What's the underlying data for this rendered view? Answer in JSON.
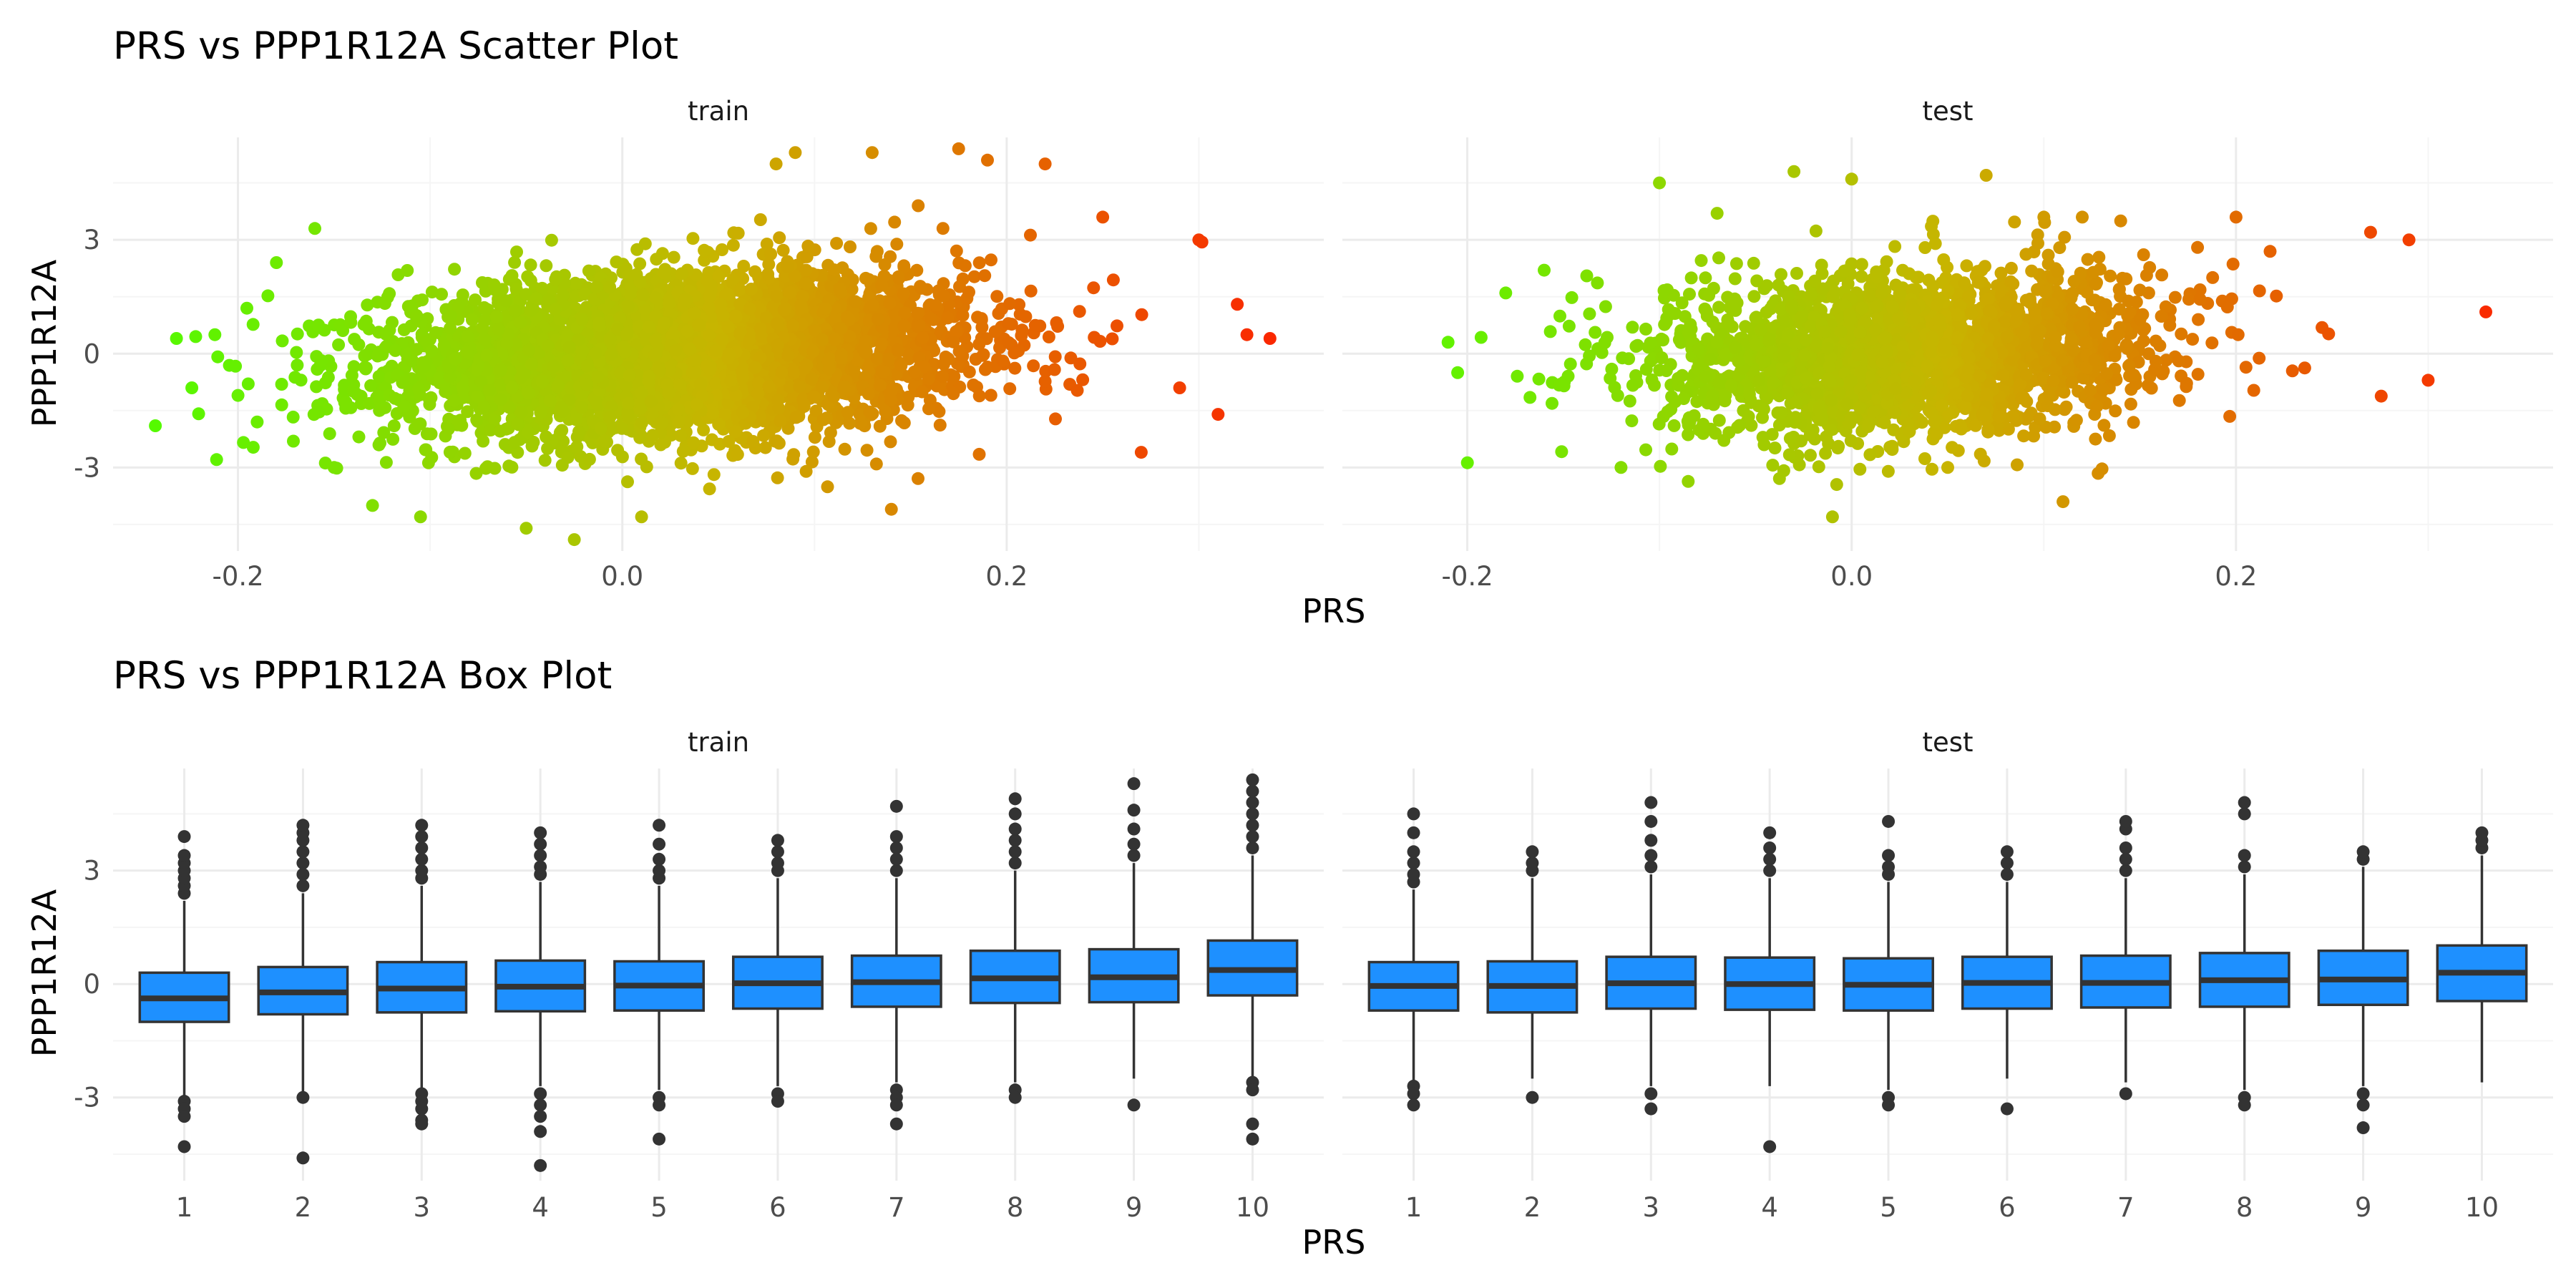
{
  "colors": {
    "background": "#ffffff",
    "grid_major": "#ebebeb",
    "grid_minor": "#f5f5f5",
    "box_fill": "#1e90ff",
    "box_stroke": "#333333",
    "outlier": "#333333",
    "gradient_low": "#4cff00",
    "gradient_mid": "#c8b400",
    "gradient_high": "#ff1a00"
  },
  "chart_data": [
    {
      "type": "scatter",
      "title": "PRS vs PPP1R12A Scatter Plot",
      "xlabel": "PRS",
      "ylabel": "PPP1R12A",
      "facets": [
        "train",
        "test"
      ],
      "x_ticks": [
        "-0.2",
        "0.0",
        "0.2"
      ],
      "x_tick_values": [
        -0.2,
        0.0,
        0.2
      ],
      "y_ticks": [
        "3",
        "0",
        "-3"
      ],
      "y_tick_values": [
        3,
        0,
        -3
      ],
      "xlim": [
        -0.265,
        0.365
      ],
      "ylim": [
        -5.2,
        5.7
      ],
      "grid": true,
      "color_encoding": "gradient by PRS, green (low) to red (high)",
      "panels": [
        {
          "facet": "train",
          "cloud": {
            "x_center": 0.03,
            "x_sd": 0.075,
            "y_center": 0.0,
            "y_sd": 1.05,
            "x_min": -0.24,
            "x_max": 0.34,
            "n_points": 4200,
            "slope": 2.4
          },
          "outliers": [
            [
              -0.243,
              -1.9
            ],
            [
              -0.232,
              0.4
            ],
            [
              -0.224,
              -0.9
            ],
            [
              -0.222,
              0.45
            ],
            [
              -0.212,
              0.5
            ],
            [
              -0.2,
              -1.1
            ],
            [
              -0.19,
              -1.8
            ],
            [
              -0.18,
              2.4
            ],
            [
              -0.16,
              3.3
            ],
            [
              -0.15,
              -3.0
            ],
            [
              -0.105,
              -4.3
            ],
            [
              -0.05,
              -4.6
            ],
            [
              -0.025,
              -4.9
            ],
            [
              0.01,
              -4.3
            ],
            [
              0.09,
              5.3
            ],
            [
              0.08,
              5.0
            ],
            [
              0.13,
              5.3
            ],
            [
              0.175,
              5.4
            ],
            [
              0.19,
              5.1
            ],
            [
              0.22,
              5.0
            ],
            [
              0.25,
              3.6
            ],
            [
              0.27,
              -2.6
            ],
            [
              0.29,
              -0.9
            ],
            [
              0.3,
              3.0
            ],
            [
              0.32,
              1.3
            ],
            [
              0.325,
              0.5
            ],
            [
              0.337,
              0.4
            ],
            [
              0.31,
              -1.6
            ],
            [
              0.14,
              -4.1
            ],
            [
              -0.13,
              -4.0
            ]
          ]
        },
        {
          "facet": "test",
          "cloud": {
            "x_center": 0.03,
            "x_sd": 0.065,
            "y_center": 0.0,
            "y_sd": 1.05,
            "x_min": -0.21,
            "x_max": 0.3,
            "n_points": 2400,
            "slope": 2.4
          },
          "outliers": [
            [
              -0.21,
              0.3
            ],
            [
              -0.205,
              -0.5
            ],
            [
              -0.18,
              1.6
            ],
            [
              -0.16,
              2.2
            ],
            [
              -0.1,
              4.5
            ],
            [
              -0.07,
              3.7
            ],
            [
              -0.03,
              4.8
            ],
            [
              -0.01,
              -4.3
            ],
            [
              0.0,
              4.6
            ],
            [
              0.07,
              4.7
            ],
            [
              0.1,
              3.6
            ],
            [
              0.12,
              3.6
            ],
            [
              0.14,
              3.5
            ],
            [
              0.18,
              2.8
            ],
            [
              0.2,
              3.6
            ],
            [
              0.27,
              3.2
            ],
            [
              0.29,
              3.0
            ],
            [
              0.3,
              -0.7
            ],
            [
              0.33,
              1.1
            ],
            [
              0.11,
              -3.9
            ],
            [
              0.05,
              -3.0
            ],
            [
              -0.12,
              -3.0
            ]
          ]
        }
      ]
    },
    {
      "type": "box",
      "title": "PRS vs PPP1R12A Box Plot",
      "xlabel": "PRS",
      "ylabel": "PPP1R12A",
      "facets": [
        "train",
        "test"
      ],
      "categories": [
        "1",
        "2",
        "3",
        "4",
        "5",
        "6",
        "7",
        "8",
        "9",
        "10"
      ],
      "y_ticks": [
        "3",
        "0",
        "-3"
      ],
      "y_tick_values": [
        3,
        0,
        -3
      ],
      "ylim": [
        -5.2,
        5.7
      ],
      "grid": true,
      "panels": [
        {
          "facet": "train",
          "boxes": [
            {
              "q1": -1.0,
              "median": -0.38,
              "q3": 0.3,
              "whisker_low": -2.95,
              "whisker_high": 2.2,
              "outliers": [
                2.4,
                2.6,
                2.8,
                3.0,
                3.2,
                3.4,
                3.9,
                -3.1,
                -3.3,
                -3.5,
                -4.3
              ]
            },
            {
              "q1": -0.8,
              "median": -0.22,
              "q3": 0.45,
              "whisker_low": -2.9,
              "whisker_high": 2.4,
              "outliers": [
                2.6,
                2.9,
                3.2,
                3.5,
                3.8,
                4.0,
                4.2,
                -3.0,
                -4.6
              ]
            },
            {
              "q1": -0.75,
              "median": -0.12,
              "q3": 0.58,
              "whisker_low": -2.8,
              "whisker_high": 2.6,
              "outliers": [
                2.8,
                3.0,
                3.3,
                3.6,
                3.9,
                4.2,
                -2.9,
                -3.1,
                -3.3,
                -3.6,
                -3.7
              ]
            },
            {
              "q1": -0.72,
              "median": -0.07,
              "q3": 0.62,
              "whisker_low": -2.7,
              "whisker_high": 2.7,
              "outliers": [
                2.9,
                3.1,
                3.4,
                3.7,
                4.0,
                -2.9,
                -3.2,
                -3.5,
                -3.9,
                -4.8
              ]
            },
            {
              "q1": -0.7,
              "median": -0.04,
              "q3": 0.6,
              "whisker_low": -2.8,
              "whisker_high": 2.6,
              "outliers": [
                2.8,
                3.0,
                3.3,
                3.7,
                4.2,
                -3.0,
                -3.2,
                -4.1
              ]
            },
            {
              "q1": -0.65,
              "median": 0.02,
              "q3": 0.72,
              "whisker_low": -2.7,
              "whisker_high": 2.8,
              "outliers": [
                3.0,
                3.2,
                3.5,
                3.8,
                -2.9,
                -3.1
              ]
            },
            {
              "q1": -0.6,
              "median": 0.05,
              "q3": 0.75,
              "whisker_low": -2.6,
              "whisker_high": 2.8,
              "outliers": [
                3.0,
                3.3,
                3.6,
                3.9,
                4.7,
                -2.8,
                -3.0,
                -3.2,
                -3.7
              ]
            },
            {
              "q1": -0.5,
              "median": 0.15,
              "q3": 0.88,
              "whisker_low": -2.6,
              "whisker_high": 3.0,
              "outliers": [
                3.2,
                3.5,
                3.8,
                4.1,
                4.5,
                4.9,
                -2.8,
                -3.0
              ]
            },
            {
              "q1": -0.48,
              "median": 0.18,
              "q3": 0.92,
              "whisker_low": -2.5,
              "whisker_high": 3.2,
              "outliers": [
                3.4,
                3.7,
                4.1,
                4.6,
                5.3,
                -3.2
              ]
            },
            {
              "q1": -0.3,
              "median": 0.37,
              "q3": 1.15,
              "whisker_low": -2.5,
              "whisker_high": 3.4,
              "outliers": [
                3.6,
                3.9,
                4.2,
                4.5,
                4.8,
                5.1,
                5.4,
                -2.6,
                -2.8,
                -3.7,
                -4.1
              ]
            }
          ]
        },
        {
          "facet": "test",
          "boxes": [
            {
              "q1": -0.7,
              "median": -0.05,
              "q3": 0.58,
              "whisker_low": -2.6,
              "whisker_high": 2.5,
              "outliers": [
                2.7,
                2.9,
                3.2,
                3.5,
                4.0,
                4.5,
                -2.7,
                -2.9,
                -3.2
              ]
            },
            {
              "q1": -0.75,
              "median": -0.05,
              "q3": 0.6,
              "whisker_low": -2.5,
              "whisker_high": 2.8,
              "outliers": [
                3.0,
                3.2,
                3.5,
                -3.0
              ]
            },
            {
              "q1": -0.65,
              "median": 0.02,
              "q3": 0.72,
              "whisker_low": -2.7,
              "whisker_high": 2.9,
              "outliers": [
                3.1,
                3.4,
                3.8,
                4.3,
                4.8,
                -2.9,
                -3.3
              ]
            },
            {
              "q1": -0.68,
              "median": 0.0,
              "q3": 0.7,
              "whisker_low": -2.7,
              "whisker_high": 2.8,
              "outliers": [
                3.0,
                3.3,
                3.6,
                4.0,
                -4.3
              ]
            },
            {
              "q1": -0.7,
              "median": -0.02,
              "q3": 0.68,
              "whisker_low": -2.8,
              "whisker_high": 2.7,
              "outliers": [
                2.9,
                3.1,
                3.4,
                4.3,
                -3.0,
                -3.2
              ]
            },
            {
              "q1": -0.65,
              "median": 0.03,
              "q3": 0.72,
              "whisker_low": -2.5,
              "whisker_high": 2.7,
              "outliers": [
                2.9,
                3.2,
                3.5,
                -3.3
              ]
            },
            {
              "q1": -0.62,
              "median": 0.03,
              "q3": 0.75,
              "whisker_low": -2.6,
              "whisker_high": 2.8,
              "outliers": [
                3.0,
                3.3,
                3.6,
                4.1,
                4.3,
                -2.9
              ]
            },
            {
              "q1": -0.6,
              "median": 0.1,
              "q3": 0.82,
              "whisker_low": -2.8,
              "whisker_high": 2.9,
              "outliers": [
                3.1,
                3.4,
                4.5,
                4.8,
                -3.0,
                -3.2
              ]
            },
            {
              "q1": -0.55,
              "median": 0.12,
              "q3": 0.88,
              "whisker_low": -2.7,
              "whisker_high": 3.1,
              "outliers": [
                3.3,
                3.5,
                -2.9,
                -3.2,
                -3.8
              ]
            },
            {
              "q1": -0.45,
              "median": 0.3,
              "q3": 1.02,
              "whisker_low": -2.6,
              "whisker_high": 3.4,
              "outliers": [
                3.6,
                3.8,
                4.0
              ]
            }
          ]
        }
      ]
    }
  ]
}
